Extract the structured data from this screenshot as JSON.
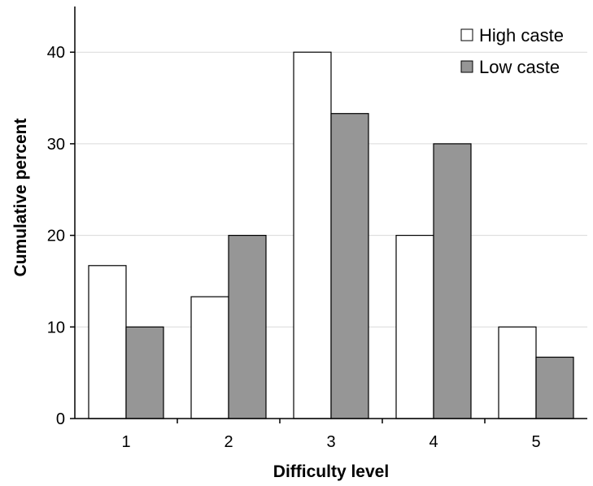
{
  "chart_data": {
    "type": "bar",
    "categories": [
      "1",
      "2",
      "3",
      "4",
      "5"
    ],
    "series": [
      {
        "name": "High caste",
        "values": [
          16.7,
          13.3,
          40.0,
          20.0,
          10.0
        ],
        "color": "#ffffff"
      },
      {
        "name": "Low caste",
        "values": [
          10.0,
          20.0,
          33.3,
          30.0,
          6.7
        ],
        "color": "#969696"
      }
    ],
    "title": "",
    "xlabel": "Difficulty level",
    "ylabel": "Cumulative percent",
    "ylim": [
      0,
      45
    ],
    "yticks": [
      0,
      10,
      20,
      30,
      40
    ],
    "grid": true,
    "legend_position": "top-right"
  }
}
